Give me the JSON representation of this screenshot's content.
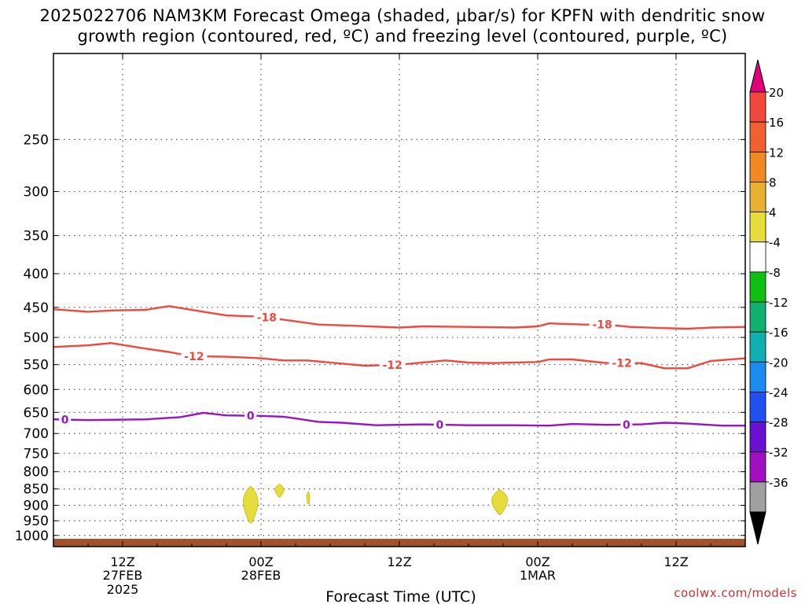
{
  "chart_data": {
    "type": "contour",
    "title": "2025022706 NAM3KM Forecast Omega (shaded, μbar/s) for KPFN with dendritic snow",
    "subtitle": "growth region (contoured, red, ºC) and freezing level (contoured, purple, ºC)",
    "xlabel": "Forecast Time (UTC)",
    "credit": "coolwx.com/models",
    "x_range_hours": [
      0,
      60
    ],
    "x_ticks": [
      {
        "hour": 6,
        "label": "12Z",
        "sub": "27FEB",
        "sub2": "2025"
      },
      {
        "hour": 18,
        "label": "00Z",
        "sub": "28FEB",
        "sub2": ""
      },
      {
        "hour": 30,
        "label": "12Z",
        "sub": "",
        "sub2": ""
      },
      {
        "hour": 42,
        "label": "00Z",
        "sub": "1MAR",
        "sub2": ""
      },
      {
        "hour": 54,
        "label": "12Z",
        "sub": "",
        "sub2": ""
      }
    ],
    "y_axis_log_pressure": true,
    "y_range_hpa": [
      1040,
      185
    ],
    "y_ticks": [
      "250",
      "300",
      "350",
      "400",
      "450",
      "500",
      "550",
      "600",
      "650",
      "700",
      "750",
      "800",
      "850",
      "900",
      "950",
      "1000"
    ],
    "contours": [
      {
        "name": "-18",
        "color": "#f0483c",
        "label_hours": [
          18.5,
          47.6
        ],
        "points": [
          [
            0,
            453
          ],
          [
            3,
            457
          ],
          [
            5,
            455
          ],
          [
            8,
            454
          ],
          [
            10,
            448
          ],
          [
            13,
            457
          ],
          [
            15,
            463
          ],
          [
            18,
            465
          ],
          [
            20,
            470
          ],
          [
            23,
            478
          ],
          [
            26,
            480
          ],
          [
            30,
            483
          ],
          [
            32,
            481
          ],
          [
            36,
            482
          ],
          [
            40,
            483
          ],
          [
            42,
            481
          ],
          [
            43,
            476
          ],
          [
            46,
            478
          ],
          [
            48,
            478
          ],
          [
            50,
            482
          ],
          [
            53,
            484
          ],
          [
            55,
            485
          ],
          [
            57,
            483
          ],
          [
            60,
            482
          ]
        ]
      },
      {
        "name": "-12",
        "color": "#f0483c",
        "label_hours": [
          12.2,
          29.4,
          49.3
        ],
        "points": [
          [
            0,
            517
          ],
          [
            3,
            514
          ],
          [
            5,
            510
          ],
          [
            8,
            520
          ],
          [
            10,
            526
          ],
          [
            12,
            534
          ],
          [
            15,
            535
          ],
          [
            18,
            538
          ],
          [
            20,
            542
          ],
          [
            22,
            542
          ],
          [
            25,
            548
          ],
          [
            27,
            552
          ],
          [
            30,
            550
          ],
          [
            34,
            542
          ],
          [
            36,
            546
          ],
          [
            38,
            547
          ],
          [
            42,
            545
          ],
          [
            43,
            540
          ],
          [
            45,
            540
          ],
          [
            48,
            547
          ],
          [
            51,
            547
          ],
          [
            53,
            557
          ],
          [
            55,
            557
          ],
          [
            57,
            543
          ],
          [
            60,
            538
          ]
        ]
      },
      {
        "name": "0",
        "color": "#9a12c4",
        "label_hours": [
          1.0,
          17.1,
          33.5,
          49.7
        ],
        "points": [
          [
            0,
            666
          ],
          [
            3,
            668
          ],
          [
            8,
            666
          ],
          [
            11,
            661
          ],
          [
            13,
            651
          ],
          [
            15,
            657
          ],
          [
            18,
            658
          ],
          [
            20,
            660
          ],
          [
            23,
            672
          ],
          [
            25,
            674
          ],
          [
            28,
            680
          ],
          [
            32,
            678
          ],
          [
            36,
            680
          ],
          [
            40,
            680
          ],
          [
            43,
            681
          ],
          [
            45,
            677
          ],
          [
            48,
            679
          ],
          [
            51,
            678
          ],
          [
            53,
            674
          ],
          [
            55,
            676
          ],
          [
            58,
            681
          ],
          [
            60,
            681
          ]
        ]
      }
    ],
    "omega_shading": [
      {
        "hour": 17.1,
        "hpa_top": 842,
        "hpa_bottom": 958,
        "width_hours": 0.75,
        "color": "#e6dc3c"
      },
      {
        "hour": 19.6,
        "hpa_top": 836,
        "hpa_bottom": 875,
        "width_hours": 0.45,
        "color": "#e6dc3c"
      },
      {
        "hour": 22.1,
        "hpa_top": 858,
        "hpa_bottom": 896,
        "width_hours": 0.16,
        "color": "#e6dc3c"
      },
      {
        "hour": 38.7,
        "hpa_top": 852,
        "hpa_bottom": 930,
        "width_hours": 0.8,
        "color": "#e6dc3c"
      }
    ],
    "colorbar": {
      "labels": [
        "20",
        "16",
        "12",
        "8",
        "4",
        "-4",
        "-8",
        "-12",
        "-16",
        "-20",
        "-24",
        "-28",
        "-32",
        "-36"
      ],
      "top_color": "#e0007a",
      "bottom_color": "#000000",
      "colors": [
        "#f0483c",
        "#f06030",
        "#f08a20",
        "#e8b030",
        "#e6dc3c",
        "#ffffff",
        "#10c010",
        "#10b070",
        "#10b0b0",
        "#1a8cf0",
        "#2050f0",
        "#6a10d0",
        "#a010c0",
        "#a0a0a0"
      ]
    },
    "ground_color": "#a0522d",
    "grid": true
  }
}
